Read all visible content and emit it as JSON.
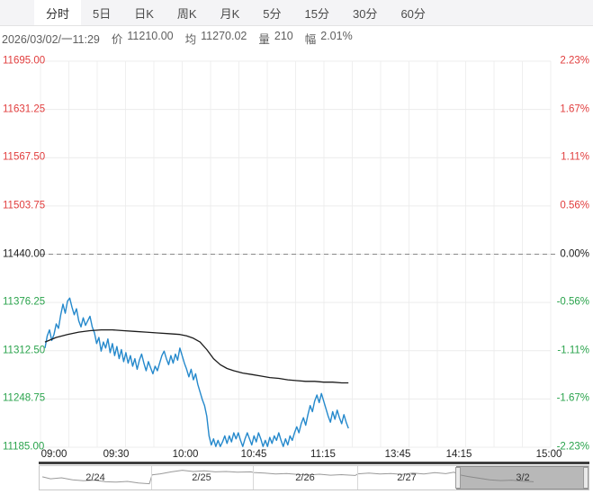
{
  "colors": {
    "up": "#e13d3d",
    "down": "#2aa34c",
    "flat": "#1c1c1c",
    "price_line": "#2589cc",
    "avg_line": "#1b1b1b",
    "nav_spark": "#9a9a9a"
  },
  "tab_bar": {
    "items": [
      {
        "name": "intraday",
        "label": "分时",
        "selected": true
      },
      {
        "name": "5day",
        "label": "5日",
        "selected": false
      },
      {
        "name": "daily-k",
        "label": "日K",
        "selected": false
      },
      {
        "name": "weekly-k",
        "label": "周K",
        "selected": false
      },
      {
        "name": "monthly-k",
        "label": "月K",
        "selected": false
      },
      {
        "name": "5min",
        "label": "5分",
        "selected": false
      },
      {
        "name": "15min",
        "label": "15分",
        "selected": false
      },
      {
        "name": "30min",
        "label": "30分",
        "selected": false
      },
      {
        "name": "60min",
        "label": "60分",
        "selected": false
      }
    ]
  },
  "quote_bar": {
    "datetime": "2026/03/02/一11:29",
    "fields": [
      {
        "key": "price",
        "label": "价",
        "value": "11210.00"
      },
      {
        "key": "average",
        "label": "均",
        "value": "11270.02"
      },
      {
        "key": "volume",
        "label": "量",
        "value": "210"
      },
      {
        "key": "amplitude",
        "label": "幅",
        "value": "2.01%"
      }
    ]
  },
  "chart_data": {
    "type": "line",
    "y_axis_left": [
      {
        "text": "11695.00",
        "tone": "up"
      },
      {
        "text": "11631.25",
        "tone": "up"
      },
      {
        "text": "11567.50",
        "tone": "up"
      },
      {
        "text": "11503.75",
        "tone": "up"
      },
      {
        "text": "11440.00",
        "tone": "flat"
      },
      {
        "text": "11376.25",
        "tone": "down"
      },
      {
        "text": "11312.50",
        "tone": "down"
      },
      {
        "text": "11248.75",
        "tone": "down"
      },
      {
        "text": "11185.00",
        "tone": "down"
      }
    ],
    "y_axis_right": [
      {
        "text": "2.23%",
        "tone": "up"
      },
      {
        "text": "1.67%",
        "tone": "up"
      },
      {
        "text": "1.11%",
        "tone": "up"
      },
      {
        "text": "0.56%",
        "tone": "up"
      },
      {
        "text": "0.00%",
        "tone": "flat"
      },
      {
        "text": "-0.56%",
        "tone": "down"
      },
      {
        "text": "-1.11%",
        "tone": "down"
      },
      {
        "text": "-1.67%",
        "tone": "down"
      },
      {
        "text": "-2.23%",
        "tone": "down"
      }
    ],
    "x_ticks": [
      "09:00",
      "09:30",
      "10:00",
      "10:45",
      "11:15",
      "13:45",
      "14:15",
      "15:00"
    ],
    "prev_close": 11440.0,
    "ylim": [
      11185.0,
      11695.0
    ],
    "session_minutes_total": 225,
    "grid": true,
    "series": [
      {
        "name": "price",
        "color_key": "price_line",
        "points": [
          [
            0,
            11316
          ],
          [
            1,
            11332
          ],
          [
            2,
            11340
          ],
          [
            3,
            11326
          ],
          [
            4,
            11334
          ],
          [
            5,
            11348
          ],
          [
            6,
            11342
          ],
          [
            7,
            11360
          ],
          [
            8,
            11374
          ],
          [
            9,
            11362
          ],
          [
            10,
            11378
          ],
          [
            11,
            11382
          ],
          [
            12,
            11370
          ],
          [
            13,
            11360
          ],
          [
            14,
            11368
          ],
          [
            15,
            11352
          ],
          [
            16,
            11344
          ],
          [
            17,
            11356
          ],
          [
            18,
            11346
          ],
          [
            19,
            11352
          ],
          [
            20,
            11358
          ],
          [
            21,
            11344
          ],
          [
            22,
            11336
          ],
          [
            23,
            11322
          ],
          [
            24,
            11330
          ],
          [
            25,
            11312
          ],
          [
            26,
            11324
          ],
          [
            27,
            11316
          ],
          [
            28,
            11328
          ],
          [
            29,
            11310
          ],
          [
            30,
            11322
          ],
          [
            31,
            11306
          ],
          [
            32,
            11318
          ],
          [
            33,
            11302
          ],
          [
            34,
            11314
          ],
          [
            35,
            11298
          ],
          [
            36,
            11310
          ],
          [
            37,
            11296
          ],
          [
            38,
            11306
          ],
          [
            39,
            11292
          ],
          [
            40,
            11302
          ],
          [
            41,
            11288
          ],
          [
            42,
            11300
          ],
          [
            43,
            11308
          ],
          [
            44,
            11296
          ],
          [
            45,
            11286
          ],
          [
            46,
            11298
          ],
          [
            47,
            11290
          ],
          [
            48,
            11282
          ],
          [
            49,
            11292
          ],
          [
            50,
            11286
          ],
          [
            51,
            11296
          ],
          [
            52,
            11306
          ],
          [
            53,
            11312
          ],
          [
            54,
            11302
          ],
          [
            55,
            11294
          ],
          [
            56,
            11306
          ],
          [
            57,
            11296
          ],
          [
            58,
            11308
          ],
          [
            59,
            11300
          ],
          [
            60,
            11316
          ],
          [
            61,
            11306
          ],
          [
            62,
            11296
          ],
          [
            63,
            11288
          ],
          [
            64,
            11278
          ],
          [
            65,
            11288
          ],
          [
            66,
            11274
          ],
          [
            67,
            11282
          ],
          [
            68,
            11268
          ],
          [
            69,
            11258
          ],
          [
            70,
            11248
          ],
          [
            71,
            11240
          ],
          [
            72,
            11226
          ],
          [
            73,
            11200
          ],
          [
            74,
            11188
          ],
          [
            75,
            11196
          ],
          [
            76,
            11186
          ],
          [
            77,
            11194
          ],
          [
            78,
            11186
          ],
          [
            79,
            11192
          ],
          [
            80,
            11200
          ],
          [
            81,
            11190
          ],
          [
            82,
            11200
          ],
          [
            83,
            11192
          ],
          [
            84,
            11204
          ],
          [
            85,
            11196
          ],
          [
            86,
            11204
          ],
          [
            87,
            11194
          ],
          [
            88,
            11186
          ],
          [
            89,
            11196
          ],
          [
            90,
            11204
          ],
          [
            91,
            11196
          ],
          [
            92,
            11188
          ],
          [
            93,
            11200
          ],
          [
            94,
            11192
          ],
          [
            95,
            11204
          ],
          [
            96,
            11196
          ],
          [
            97,
            11186
          ],
          [
            98,
            11194
          ],
          [
            99,
            11186
          ],
          [
            100,
            11198
          ],
          [
            101,
            11190
          ],
          [
            102,
            11200
          ],
          [
            103,
            11194
          ],
          [
            104,
            11204
          ],
          [
            105,
            11194
          ],
          [
            106,
            11186
          ],
          [
            107,
            11196
          ],
          [
            108,
            11188
          ],
          [
            109,
            11200
          ],
          [
            110,
            11194
          ],
          [
            111,
            11204
          ],
          [
            112,
            11212
          ],
          [
            113,
            11204
          ],
          [
            114,
            11216
          ],
          [
            115,
            11224
          ],
          [
            116,
            11214
          ],
          [
            117,
            11228
          ],
          [
            118,
            11240
          ],
          [
            119,
            11232
          ],
          [
            120,
            11246
          ],
          [
            121,
            11254
          ],
          [
            122,
            11244
          ],
          [
            123,
            11256
          ],
          [
            124,
            11246
          ],
          [
            125,
            11236
          ],
          [
            126,
            11226
          ],
          [
            127,
            11218
          ],
          [
            128,
            11232
          ],
          [
            129,
            11222
          ],
          [
            130,
            11234
          ],
          [
            131,
            11224
          ],
          [
            132,
            11216
          ],
          [
            133,
            11228
          ],
          [
            134,
            11218
          ],
          [
            135,
            11210
          ]
        ]
      },
      {
        "name": "average",
        "color_key": "avg_line",
        "points": [
          [
            0,
            11324
          ],
          [
            5,
            11330
          ],
          [
            10,
            11334
          ],
          [
            15,
            11337
          ],
          [
            20,
            11339
          ],
          [
            25,
            11340
          ],
          [
            30,
            11340
          ],
          [
            35,
            11339
          ],
          [
            40,
            11338
          ],
          [
            45,
            11337
          ],
          [
            50,
            11336
          ],
          [
            55,
            11335
          ],
          [
            60,
            11334
          ],
          [
            63,
            11332
          ],
          [
            66,
            11329
          ],
          [
            69,
            11324
          ],
          [
            72,
            11314
          ],
          [
            75,
            11302
          ],
          [
            78,
            11294
          ],
          [
            81,
            11289
          ],
          [
            84,
            11286
          ],
          [
            88,
            11283
          ],
          [
            92,
            11281
          ],
          [
            96,
            11279
          ],
          [
            100,
            11277
          ],
          [
            104,
            11276
          ],
          [
            108,
            11274
          ],
          [
            112,
            11273
          ],
          [
            116,
            11272
          ],
          [
            120,
            11272
          ],
          [
            124,
            11271
          ],
          [
            128,
            11271
          ],
          [
            132,
            11270
          ],
          [
            135,
            11270
          ]
        ]
      }
    ]
  },
  "navigator": {
    "days": [
      {
        "name": "2-24",
        "label": "2/24",
        "selected": false
      },
      {
        "name": "2-25",
        "label": "2/25",
        "selected": false
      },
      {
        "name": "2-26",
        "label": "2/26",
        "selected": false
      },
      {
        "name": "2-27",
        "label": "2/27",
        "selected": false
      },
      {
        "name": "3-2",
        "label": "3/2",
        "selected": true
      }
    ],
    "sparkline": [
      [
        0.005,
        0.45
      ],
      [
        0.02,
        0.55
      ],
      [
        0.04,
        0.5
      ],
      [
        0.06,
        0.6
      ],
      [
        0.08,
        0.65
      ],
      [
        0.1,
        0.62
      ],
      [
        0.12,
        0.7
      ],
      [
        0.14,
        0.72
      ],
      [
        0.16,
        0.68
      ],
      [
        0.18,
        0.76
      ],
      [
        0.2,
        0.8
      ],
      [
        0.205,
        0.35
      ],
      [
        0.22,
        0.3
      ],
      [
        0.24,
        0.2
      ],
      [
        0.26,
        0.12
      ],
      [
        0.28,
        0.18
      ],
      [
        0.3,
        0.15
      ],
      [
        0.32,
        0.2
      ],
      [
        0.34,
        0.18
      ],
      [
        0.36,
        0.22
      ],
      [
        0.385,
        0.2
      ],
      [
        0.39,
        0.23
      ],
      [
        0.41,
        0.26
      ],
      [
        0.43,
        0.31
      ],
      [
        0.45,
        0.28
      ],
      [
        0.47,
        0.33
      ],
      [
        0.49,
        0.36
      ],
      [
        0.51,
        0.32
      ],
      [
        0.53,
        0.37
      ],
      [
        0.55,
        0.34
      ],
      [
        0.575,
        0.38
      ],
      [
        0.58,
        0.3
      ],
      [
        0.6,
        0.26
      ],
      [
        0.62,
        0.31
      ],
      [
        0.64,
        0.28
      ],
      [
        0.66,
        0.33
      ],
      [
        0.68,
        0.26
      ],
      [
        0.7,
        0.31
      ],
      [
        0.72,
        0.24
      ],
      [
        0.74,
        0.29
      ],
      [
        0.755,
        0.22
      ],
      [
        0.765,
        0.35
      ],
      [
        0.78,
        0.43
      ],
      [
        0.8,
        0.52
      ],
      [
        0.82,
        0.6
      ],
      [
        0.84,
        0.64
      ],
      [
        0.86,
        0.62
      ],
      [
        0.88,
        0.67
      ],
      [
        0.9,
        0.7
      ]
    ]
  }
}
